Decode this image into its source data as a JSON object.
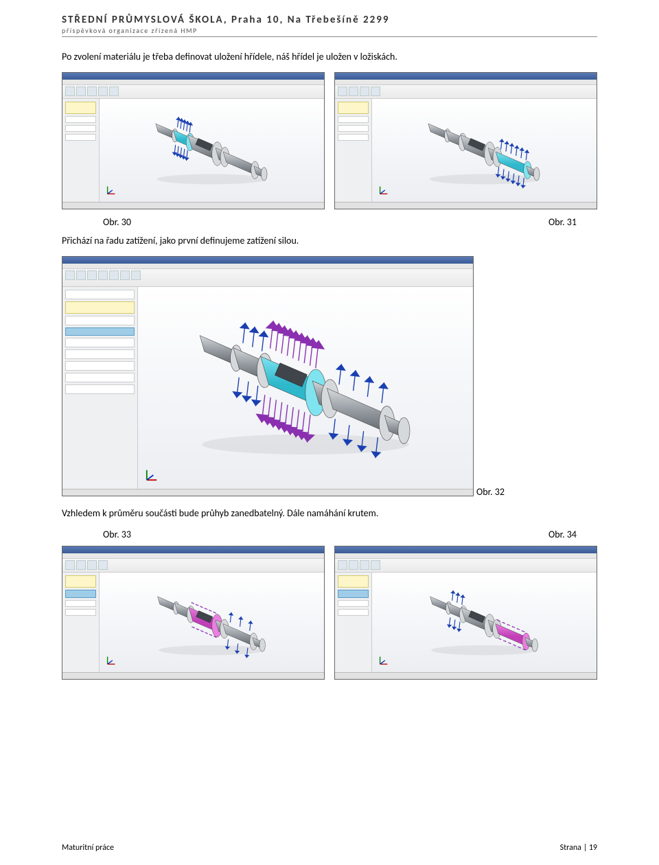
{
  "header": {
    "title": "STŘEDNÍ PRŮMYSLOVÁ ŠKOLA, Praha 10, Na Třebešíně 2299",
    "subtitle": "příspěvková organizace zřízená HMP"
  },
  "paragraphs": {
    "p1": "Po zvolení materiálu je třeba definovat uložení hřídele, náš hřídel je uložen v ložiskách.",
    "p2": "Přichází na řadu zatížení, jako první definujeme zatížení silou.",
    "p3": "Vzhledem k průměru součásti bude průhyb zanedbatelný. Dále namáhání krutem."
  },
  "captions": {
    "c30": "Obr. 30",
    "c31": "Obr. 31",
    "c32": "Obr. 32",
    "c33": "Obr. 33",
    "c34": "Obr. 34"
  },
  "footer": {
    "left": "Maturitní práce",
    "right": "Strana | 19"
  },
  "shaft": {
    "body_color": "#9aa0a6",
    "body_light": "#d6d9dc",
    "body_dark": "#5f656b",
    "slot_color": "#3f454b",
    "highlight_cyan": "#7fe4ef",
    "highlight_cyan_dark": "#2fb8cc",
    "highlight_magenta": "#e97fe0",
    "highlight_magenta_dark": "#c23fb8",
    "arrow_blue": "#1a3fb0",
    "arrow_purple": "#8a2fb0",
    "bg_gradient_top": "#ffffff",
    "bg_gradient_bottom": "#eceef2"
  },
  "triad": {
    "x": "#c00000",
    "y": "#008000",
    "z": "#0030c0"
  }
}
